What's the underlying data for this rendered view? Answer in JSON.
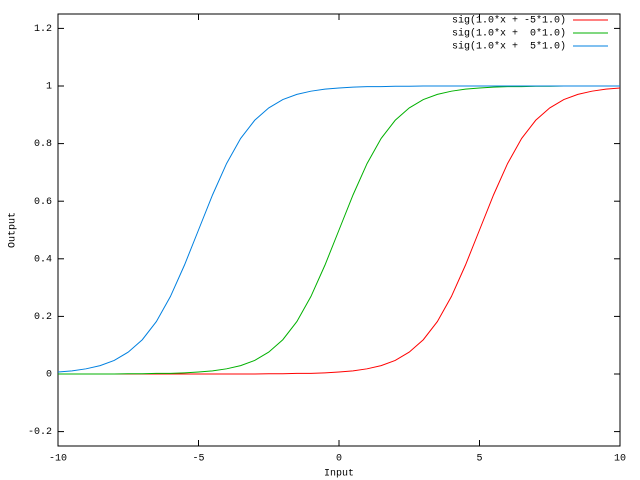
{
  "chart_data": {
    "type": "line",
    "x_label": "Input",
    "y_label": "Output",
    "x": [
      -10,
      -9.5,
      -9,
      -8.5,
      -8,
      -7.5,
      -7,
      -6.5,
      -6,
      -5.5,
      -5,
      -4.5,
      -4,
      -3.5,
      -3,
      -2.5,
      -2,
      -1.5,
      -1,
      -0.5,
      0,
      0.5,
      1,
      1.5,
      2,
      2.5,
      3,
      3.5,
      4,
      4.5,
      5,
      5.5,
      6,
      6.5,
      7,
      7.5,
      8,
      8.5,
      9,
      9.5,
      10
    ],
    "series": [
      {
        "name": "sig(1.0*x + -5*1.0)",
        "color": "#ff0000",
        "values": [
          0,
          0,
          0,
          0,
          0,
          0,
          0,
          0,
          0,
          0,
          0,
          0,
          0,
          0,
          0,
          0.001,
          0.001,
          0.002,
          0.002,
          0.004,
          0.007,
          0.011,
          0.018,
          0.029,
          0.047,
          0.076,
          0.119,
          0.182,
          0.269,
          0.378,
          0.5,
          0.622,
          0.731,
          0.818,
          0.881,
          0.924,
          0.953,
          0.971,
          0.982,
          0.989,
          0.993
        ]
      },
      {
        "name": "sig(1.0*x +  0*1.0)",
        "color": "#00b000",
        "values": [
          0,
          0,
          0,
          0,
          0,
          0.001,
          0.001,
          0.002,
          0.002,
          0.004,
          0.007,
          0.011,
          0.018,
          0.029,
          0.047,
          0.076,
          0.119,
          0.182,
          0.269,
          0.378,
          0.5,
          0.622,
          0.731,
          0.818,
          0.881,
          0.924,
          0.953,
          0.971,
          0.982,
          0.989,
          0.993,
          0.996,
          0.998,
          0.998,
          0.999,
          0.999,
          1,
          1,
          1,
          1,
          1
        ]
      },
      {
        "name": "sig(1.0*x +  5*1.0)",
        "color": "#0080e0",
        "values": [
          0.007,
          0.011,
          0.018,
          0.029,
          0.047,
          0.076,
          0.119,
          0.182,
          0.269,
          0.378,
          0.5,
          0.622,
          0.731,
          0.818,
          0.881,
          0.924,
          0.953,
          0.971,
          0.982,
          0.989,
          0.993,
          0.996,
          0.998,
          0.998,
          0.999,
          0.999,
          1,
          1,
          1,
          1,
          1,
          1,
          1,
          1,
          1,
          1,
          1,
          1,
          1,
          1,
          1
        ]
      }
    ],
    "xlim": [
      -10,
      10
    ],
    "xticks": [
      -10,
      -5,
      0,
      5,
      10
    ],
    "ylim": [
      -0.25,
      1.25
    ],
    "yticks": [
      -0.2,
      0,
      0.2,
      0.4,
      0.6,
      0.8,
      1,
      1.2
    ],
    "grid": false,
    "legend": "top-right"
  }
}
